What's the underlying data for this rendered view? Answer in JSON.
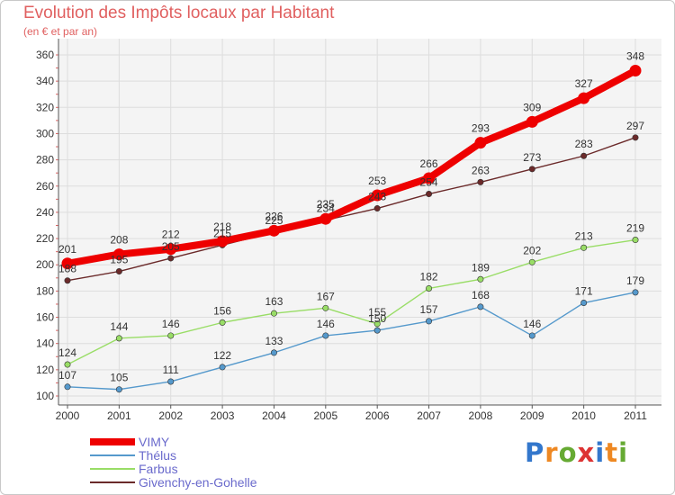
{
  "header": {
    "title": "Evolution des Impôts locaux par Habitant",
    "subtitle": "(en € et par an)"
  },
  "logo": {
    "text": "Proxiti"
  },
  "chart_data": {
    "type": "line",
    "title": "Evolution des Impôts locaux par Habitant",
    "subtitle": "(en € et par an)",
    "xlabel": "",
    "ylabel": "",
    "x": [
      "2000",
      "2001",
      "2002",
      "2003",
      "2004",
      "2005",
      "2006",
      "2007",
      "2008",
      "2009",
      "2010",
      "2011"
    ],
    "ylim": [
      100,
      360
    ],
    "y_ticks": [
      100,
      120,
      140,
      160,
      180,
      200,
      220,
      240,
      260,
      280,
      300,
      320,
      340,
      360
    ],
    "grid": true,
    "legend_position": "bottom-left",
    "series": [
      {
        "name": "Givenchy-en-Gohelle",
        "color": "#6b2a2a",
        "values": [
          188,
          195,
          205,
          215,
          225,
          234,
          243,
          254,
          263,
          273,
          283,
          297
        ]
      },
      {
        "name": "Farbus",
        "color": "#99dd66",
        "values": [
          124,
          144,
          146,
          156,
          163,
          167,
          155,
          182,
          189,
          202,
          213,
          219
        ]
      },
      {
        "name": "Thélus",
        "color": "#5599cc",
        "values": [
          107,
          105,
          111,
          122,
          133,
          146,
          150,
          157,
          168,
          146,
          171,
          179
        ]
      },
      {
        "name": "VIMY",
        "color": "#ee0000",
        "values": [
          201,
          208,
          212,
          218,
          226,
          235,
          253,
          266,
          293,
          309,
          327,
          348
        ]
      }
    ],
    "legend_order": [
      "VIMY",
      "Thélus",
      "Farbus",
      "Givenchy-en-Gohelle"
    ]
  }
}
